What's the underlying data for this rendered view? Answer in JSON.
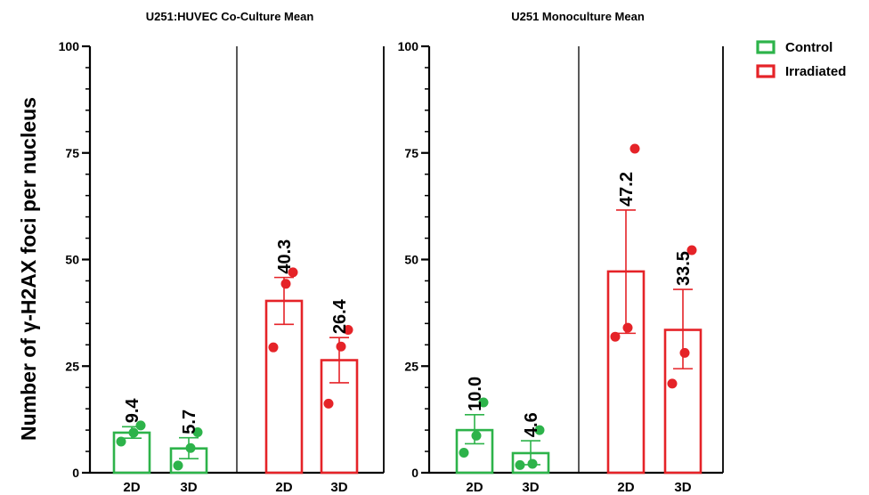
{
  "colors": {
    "control": "#2db34a",
    "irradiated": "#e52328",
    "axis": "#000000"
  },
  "ylabel": "Number of γ-H2AX foci per nucleus",
  "legend": [
    {
      "label": "Control",
      "color": "#2db34a"
    },
    {
      "label": "Irradiated",
      "color": "#e52328"
    }
  ],
  "chart_data": [
    {
      "type": "bar",
      "title": "U251:HUVEC Co-Culture Mean",
      "ylim": [
        0,
        100
      ],
      "yticks": [
        "0",
        "25",
        "50",
        "75",
        "100"
      ],
      "groups": [
        "Control",
        "Irradiated"
      ],
      "categories": [
        "2D",
        "3D",
        "2D",
        "3D"
      ],
      "bars": [
        {
          "group": "Control",
          "category": "2D",
          "value": 9.4,
          "label": "9.4",
          "err": [
            8.1,
            10.8
          ],
          "points": [
            7.3,
            9.4,
            11.1
          ]
        },
        {
          "group": "Control",
          "category": "3D",
          "value": 5.7,
          "label": "5.7",
          "err": [
            3.3,
            8.2
          ],
          "points": [
            1.7,
            5.8,
            9.5
          ]
        },
        {
          "group": "Irradiated",
          "category": "2D",
          "value": 40.3,
          "label": "40.3",
          "err": [
            34.8,
            45.8
          ],
          "points": [
            29.4,
            44.3,
            47.0
          ]
        },
        {
          "group": "Irradiated",
          "category": "3D",
          "value": 26.4,
          "label": "26.4",
          "err": [
            21.1,
            31.7
          ],
          "points": [
            16.2,
            29.6,
            33.5
          ]
        }
      ]
    },
    {
      "type": "bar",
      "title": "U251 Monoculture Mean",
      "ylim": [
        0,
        100
      ],
      "yticks": [
        "0",
        "25",
        "50",
        "75",
        "100"
      ],
      "groups": [
        "Control",
        "Irradiated"
      ],
      "categories": [
        "2D",
        "3D",
        "2D",
        "3D"
      ],
      "bars": [
        {
          "group": "Control",
          "category": "2D",
          "value": 10.0,
          "label": "10.0",
          "err": [
            6.8,
            13.6
          ],
          "points": [
            4.7,
            8.7,
            16.5
          ]
        },
        {
          "group": "Control",
          "category": "3D",
          "value": 4.6,
          "label": "4.6",
          "err": [
            1.9,
            7.5
          ],
          "points": [
            1.8,
            2.1,
            10.0
          ]
        },
        {
          "group": "Irradiated",
          "category": "2D",
          "value": 47.2,
          "label": "47.2",
          "err": [
            32.7,
            61.6
          ],
          "points": [
            31.9,
            34.0,
            76.0
          ]
        },
        {
          "group": "Irradiated",
          "category": "3D",
          "value": 33.5,
          "label": "33.5",
          "err": [
            24.4,
            43.0
          ],
          "points": [
            20.9,
            28.1,
            52.2
          ]
        }
      ]
    }
  ]
}
